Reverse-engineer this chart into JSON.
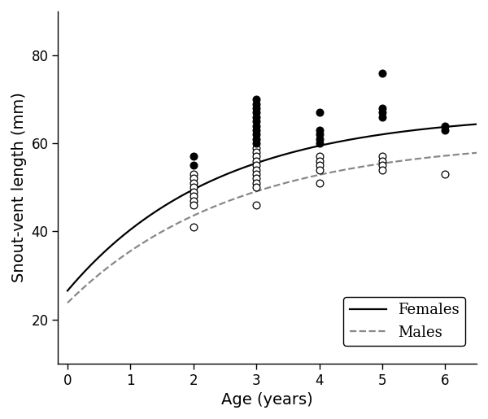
{
  "females_x": [
    2,
    2,
    3,
    3,
    3,
    3,
    3,
    3,
    3,
    3,
    3,
    3,
    3,
    4,
    4,
    4,
    4,
    4,
    5,
    5,
    5,
    5,
    6,
    6
  ],
  "females_y": [
    57,
    55,
    70,
    69,
    68,
    67,
    66,
    65,
    64,
    63,
    62,
    61,
    60,
    67,
    63,
    62,
    61,
    60,
    76,
    68,
    67,
    66,
    64,
    63
  ],
  "males_x": [
    2,
    2,
    2,
    2,
    2,
    2,
    2,
    2,
    2,
    3,
    3,
    3,
    3,
    3,
    3,
    3,
    3,
    3,
    3,
    3,
    4,
    4,
    4,
    4,
    4,
    5,
    5,
    5,
    5,
    6
  ],
  "males_y": [
    53,
    52,
    51,
    50,
    49,
    48,
    47,
    46,
    41,
    59,
    58,
    57,
    56,
    55,
    54,
    53,
    52,
    51,
    50,
    46,
    57,
    56,
    55,
    54,
    51,
    57,
    56,
    55,
    54,
    53
  ],
  "xlim": [
    -0.15,
    6.5
  ],
  "ylim": [
    10,
    90
  ],
  "yticks": [
    20,
    40,
    60,
    80
  ],
  "xticks": [
    0,
    1,
    2,
    3,
    4,
    5,
    6
  ],
  "xlabel": "Age (years)",
  "ylabel": "Snout-vent length (mm)",
  "female_line_color": "#000000",
  "male_line_color": "#888888",
  "vb_female": {
    "Linf": 67.0,
    "K": 0.42,
    "t0": -1.2
  },
  "vb_male": {
    "Linf": 61.0,
    "K": 0.38,
    "t0": -1.3
  },
  "marker_size": 40,
  "legend_fontsize": 13,
  "axis_fontsize": 14,
  "tick_fontsize": 12
}
